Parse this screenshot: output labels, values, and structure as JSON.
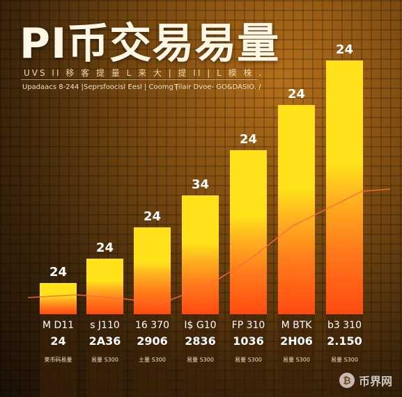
{
  "header": {
    "title": "PI币交易易量",
    "subtitle": "UVS II 移 客 提 量 L 来 大 | 提 II | L 模 株 .",
    "captions": [
      "Upadaacs 8-244 |",
      "Seprsfoocisl Eesl | Coomg |",
      "Tilair Dvoe- GO&DASIO. /"
    ]
  },
  "chart_data": {
    "type": "bar",
    "categories": [
      "M D11",
      "s J110",
      "16 370",
      "I$ G10",
      "FP 310",
      "M BTK",
      "b3 310"
    ],
    "values": [
      24,
      24,
      24,
      34,
      24,
      24,
      24
    ],
    "bottom_values": [
      "24",
      "2A36",
      "2906",
      "2836",
      "1036",
      "2H06",
      "2.150"
    ],
    "bar_notes": [
      "莱币码易量",
      "易量 S300",
      "土量 S300",
      "易量 S300",
      "易量 S300",
      "易量 S300",
      "易量 S300"
    ],
    "title": "PI币交易易量",
    "xlabel": "",
    "ylabel": "",
    "grid": false,
    "colors": {
      "top": "#ffe21a",
      "mid": "#ffb020",
      "low": "#ff7a1a",
      "base": "#ff4a12",
      "line": "#ff6a3a"
    }
  },
  "watermark": {
    "text": "币界网",
    "icon": "bitcoin-icon"
  }
}
